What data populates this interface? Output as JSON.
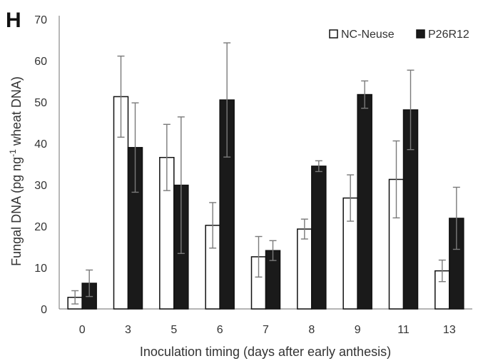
{
  "panel_label": "H",
  "chart_data": {
    "type": "bar",
    "categories": [
      "0",
      "3",
      "5",
      "6",
      "7",
      "8",
      "9",
      "11",
      "13"
    ],
    "series": [
      {
        "name": "NC-Neuse",
        "fill": "#ffffff",
        "stroke": "#111111",
        "values": [
          2.8,
          51.3,
          36.6,
          20.2,
          12.6,
          19.3,
          26.8,
          31.3,
          9.2
        ],
        "errors": [
          1.6,
          9.8,
          8.0,
          5.5,
          4.9,
          2.4,
          5.6,
          9.3,
          2.6
        ]
      },
      {
        "name": "P26R12",
        "fill": "#1a1a1a",
        "stroke": "#111111",
        "values": [
          6.2,
          39.0,
          29.9,
          50.5,
          14.1,
          34.5,
          51.8,
          48.1,
          21.9
        ],
        "errors": [
          3.2,
          10.8,
          16.5,
          13.8,
          2.4,
          1.3,
          3.3,
          9.6,
          7.5
        ]
      }
    ],
    "ylim": [
      0,
      70
    ],
    "yticks": [
      "0",
      "10",
      "20",
      "30",
      "40",
      "50",
      "60",
      "70"
    ],
    "xlabel": "Inoculation timing (days after early anthesis)",
    "ylabel_parts": [
      "Fungal DNA (pg ng",
      "-1",
      " wheat DNA)"
    ],
    "legend_position": "top-right",
    "grid": false
  }
}
